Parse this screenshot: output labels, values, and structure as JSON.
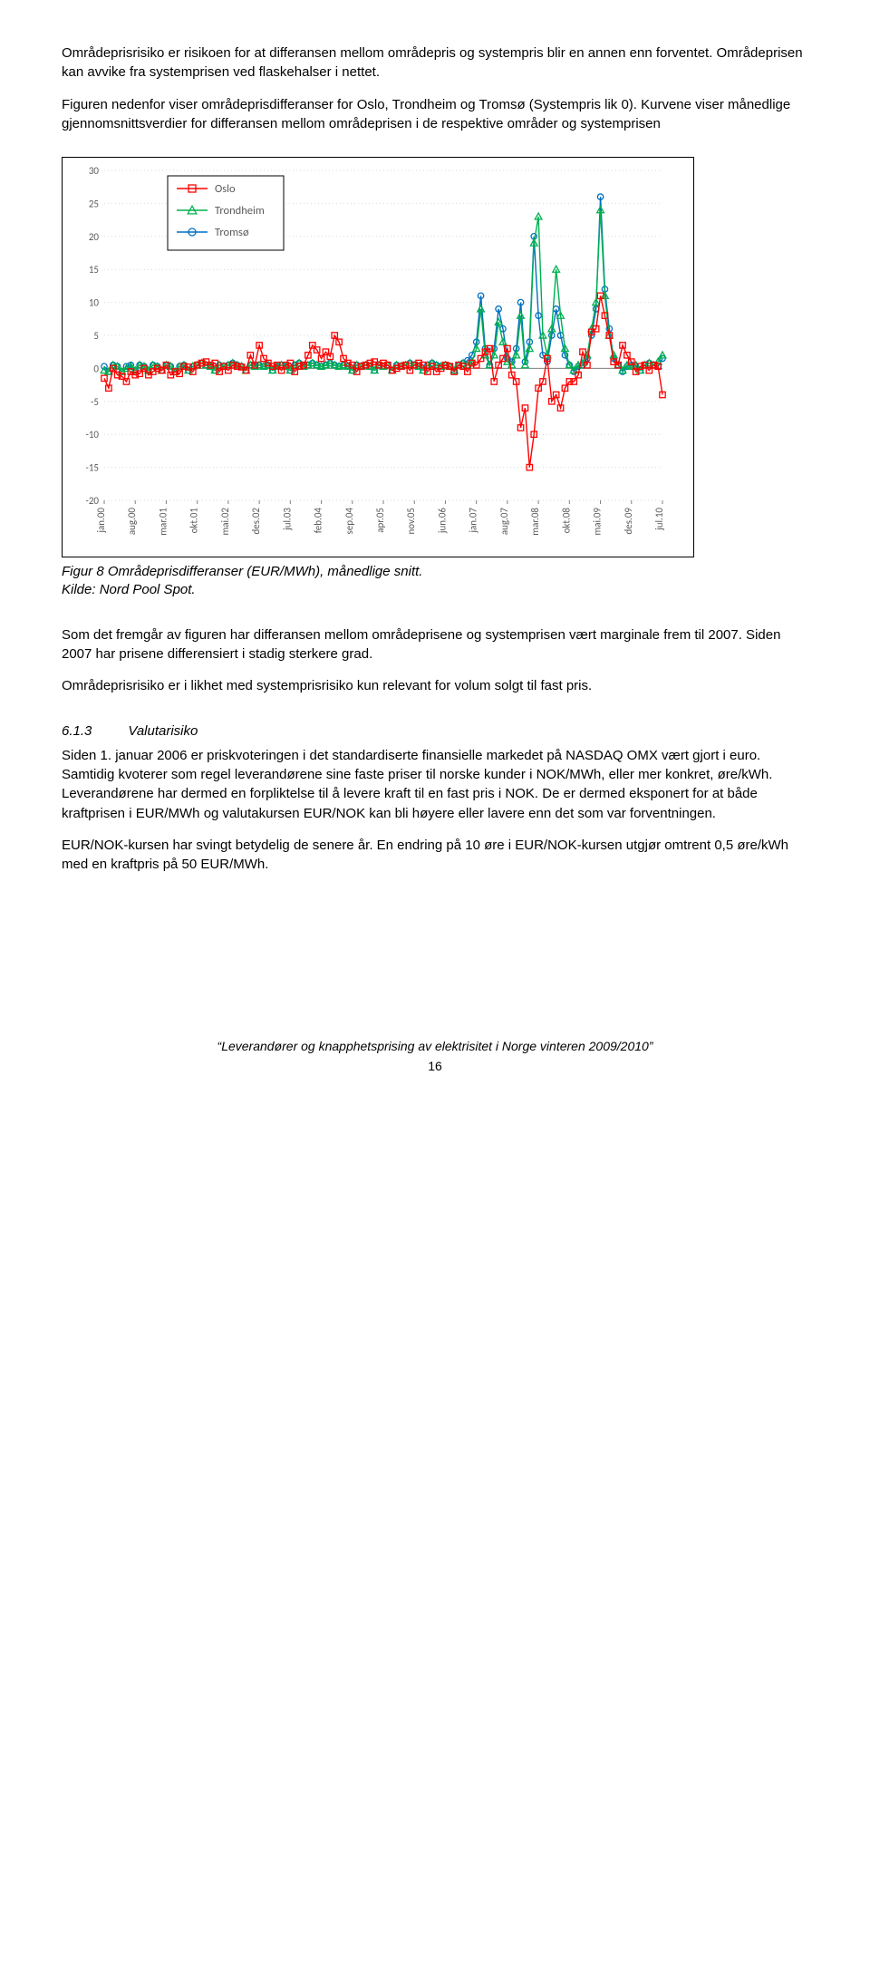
{
  "para1": "Områdeprisrisiko er risikoen for at differansen mellom områdepris og systempris blir en annen enn forventet. Områdeprisen kan avvike fra systemprisen ved flaskehalser i nettet.",
  "para2": "Figuren nedenfor viser områdeprisdifferanser for Oslo, Trondheim og Tromsø (Systempris lik 0). Kurvene viser månedlige gjennomsnittsverdier for differansen mellom områdeprisen i de respektive områder og systemprisen",
  "chart": {
    "type": "line",
    "background_color": "#ffffff",
    "grid_color": "#d9d9d9",
    "axis_color": "#808080",
    "ylim": [
      -20,
      30
    ],
    "ytick_step": 5,
    "yticks": [
      -20,
      -15,
      -10,
      -5,
      0,
      5,
      10,
      15,
      20,
      25,
      30
    ],
    "label_fontsize": 11,
    "legend": {
      "box_border": "#000000",
      "items": [
        {
          "label": "Oslo",
          "color": "#ff0000",
          "marker": "square"
        },
        {
          "label": "Trondheim",
          "color": "#00b050",
          "marker": "triangle"
        },
        {
          "label": "Tromsø",
          "color": "#0070c0",
          "marker": "circle"
        }
      ]
    },
    "xlabels": [
      "jan.00",
      "aug.00",
      "mar.01",
      "okt.01",
      "mai.02",
      "des.02",
      "jul.03",
      "feb.04",
      "sep.04",
      "apr.05",
      "nov.05",
      "jun.06",
      "jan.07",
      "aug.07",
      "mar.08",
      "okt.08",
      "mai.09",
      "des.09",
      "jul.10"
    ],
    "n_points": 127,
    "series": {
      "oslo": {
        "color": "#ff0000",
        "marker": "square",
        "values": [
          -1.5,
          -3,
          0,
          -1,
          -1.2,
          -2,
          -0.5,
          -1,
          -0.8,
          0,
          -1,
          -0.5,
          0,
          -0.3,
          0.5,
          -1,
          -0.5,
          -0.8,
          0.3,
          0.2,
          -0.5,
          0.5,
          0.8,
          1,
          0.5,
          0.8,
          -0.5,
          0.3,
          -0.3,
          0.5,
          0.3,
          0.2,
          -0.3,
          2,
          0.5,
          3.5,
          1.5,
          0.8,
          0.3,
          0.5,
          -0.3,
          0.5,
          0.8,
          -0.5,
          0.3,
          0.5,
          2,
          3.5,
          2.8,
          1.5,
          2.5,
          1.8,
          5,
          4,
          1.5,
          0.8,
          0.5,
          -0.5,
          0.3,
          0.5,
          0.8,
          1,
          0.5,
          0.8,
          0.5,
          -0.3,
          0,
          0.3,
          0.5,
          -0.3,
          0.5,
          0.8,
          0.5,
          -0.5,
          0.3,
          -0.5,
          0,
          0.5,
          0.3,
          -0.5,
          0.5,
          0.3,
          -0.5,
          0.8,
          0.5,
          1.5,
          2.5,
          3,
          -2,
          0.5,
          1.5,
          3,
          -1,
          -2,
          -9,
          -6,
          -15,
          -10,
          -3,
          -2,
          1.5,
          -5,
          -4,
          -6,
          -3,
          -2,
          -2,
          -1,
          2.5,
          0.5,
          5.5,
          6,
          11,
          8,
          5,
          1,
          0.5,
          3.5,
          2,
          1,
          -0.5,
          0.3,
          0.5,
          -0.3,
          0.5,
          0.3,
          -4
        ]
      },
      "trondheim": {
        "color": "#00b050",
        "marker": "triangle",
        "values": [
          -0.3,
          -0.5,
          0.5,
          0.3,
          -0.5,
          0,
          0.3,
          -0.3,
          0.5,
          0.3,
          -0.3,
          0.5,
          0.3,
          -0.3,
          0.5,
          0.3,
          -0.5,
          0.3,
          0.5,
          -0.3,
          0.3,
          0.5,
          0.8,
          0.5,
          0.3,
          -0.3,
          0.5,
          0.3,
          0.5,
          0.8,
          0.5,
          0.3,
          -0.3,
          0.5,
          0.3,
          0.5,
          0.3,
          0.5,
          -0.3,
          0.3,
          0.5,
          0.3,
          -0.3,
          0.5,
          0.8,
          0.3,
          0.5,
          0.8,
          0.5,
          0.3,
          0.5,
          0.8,
          0.5,
          0.3,
          0.5,
          0.3,
          -0.3,
          0.5,
          0.3,
          0.5,
          0.3,
          -0.3,
          0.5,
          0.3,
          0.5,
          -0.3,
          0.5,
          0.3,
          0.5,
          0.8,
          0.5,
          0.3,
          -0.3,
          0.5,
          0.8,
          0.5,
          0.3,
          0.5,
          0.3,
          -0.3,
          0.5,
          0.8,
          0.5,
          1,
          3,
          9,
          2,
          0.5,
          2,
          7,
          4,
          1,
          0.5,
          2,
          8,
          0.5,
          3,
          19,
          23,
          5,
          2,
          6,
          15,
          8,
          3,
          0.5,
          -0.3,
          0.5,
          0.8,
          2,
          6,
          10,
          24,
          11,
          5,
          2,
          0.5,
          -0.3,
          0.5,
          0.3,
          0.5,
          -0.3,
          0.5,
          0.8,
          0.5,
          1,
          2
        ]
      },
      "tromso": {
        "color": "#0070c0",
        "marker": "circle",
        "values": [
          0.3,
          -0.5,
          0.5,
          0.3,
          -0.5,
          0.3,
          0.5,
          -0.3,
          0.5,
          0.3,
          -0.3,
          0.5,
          0.3,
          -0.3,
          0.5,
          0.3,
          -0.5,
          0.3,
          0.5,
          -0.3,
          0.3,
          0.5,
          0.8,
          0.5,
          0.3,
          -0.3,
          0.5,
          0.3,
          0.5,
          0.8,
          0.5,
          0.3,
          -0.3,
          0.5,
          0.3,
          0.5,
          0.3,
          0.5,
          -0.3,
          0.3,
          0.5,
          0.3,
          -0.3,
          0.5,
          0.8,
          0.3,
          0.5,
          0.8,
          0.5,
          0.3,
          0.5,
          0.8,
          0.5,
          0.3,
          0.5,
          0.3,
          -0.3,
          0.5,
          0.3,
          0.5,
          0.3,
          -0.3,
          0.5,
          0.3,
          0.5,
          -0.3,
          0.5,
          0.3,
          0.5,
          0.8,
          0.5,
          0.3,
          -0.3,
          0.5,
          0.8,
          0.5,
          0.3,
          0.5,
          0.3,
          -0.3,
          0.5,
          0.8,
          1.2,
          2,
          4,
          11,
          3,
          0.5,
          3,
          9,
          6,
          1.5,
          1,
          3,
          10,
          1,
          4,
          20,
          8,
          2,
          1,
          5,
          9,
          5,
          2,
          0.5,
          -0.5,
          0.3,
          0.5,
          1.5,
          5,
          9,
          26,
          12,
          6,
          1.5,
          0.5,
          -0.5,
          0.3,
          0.5,
          0.3,
          -0.3,
          0.5,
          0.8,
          0.5,
          0.3,
          1.5
        ]
      }
    }
  },
  "caption": "Figur 8 Områdeprisdifferanser (EUR/MWh), månedlige snitt.\nKilde: Nord Pool Spot.",
  "para3": "Som det fremgår av figuren har differansen mellom områdeprisene og systemprisen vært marginale frem til 2007. Siden 2007 har prisene differensiert i stadig sterkere grad.",
  "para4": "Områdeprisrisiko er i likhet med systemprisrisiko kun relevant for volum solgt til fast pris.",
  "sec_num": "6.1.3",
  "sec_title": "Valutarisiko",
  "para5": "Siden 1. januar 2006 er priskvoteringen i det standardiserte finansielle markedet på NASDAQ OMX vært gjort i euro. Samtidig kvoterer som regel leverandørene sine faste priser til norske kunder i NOK/MWh, eller mer konkret, øre/kWh. Leverandørene har dermed en forpliktelse til å levere kraft til en fast pris i NOK. De er dermed eksponert for at både kraftprisen i EUR/MWh og valutakursen EUR/NOK kan bli høyere eller lavere enn det som var forventningen.",
  "para6": "EUR/NOK-kursen har svingt betydelig de senere år. En endring på 10 øre i EUR/NOK-kursen utgjør omtrent 0,5 øre/kWh med en kraftpris på 50 EUR/MWh.",
  "footer": "“Leverandører og knapphetsprising av elektrisitet i Norge vinteren 2009/2010”",
  "pagenum": "16"
}
